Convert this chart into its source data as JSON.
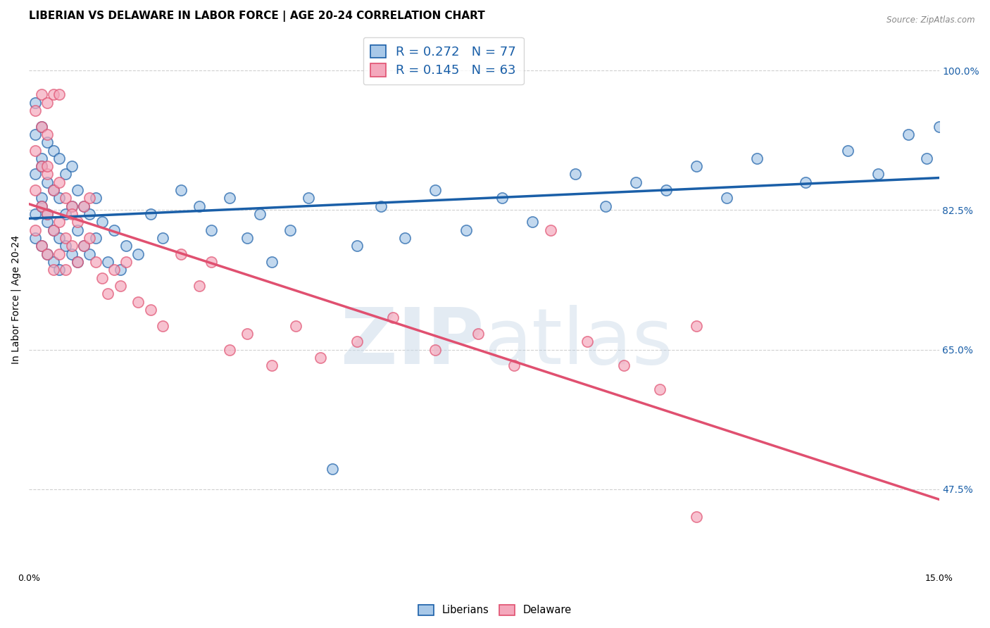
{
  "title": "LIBERIAN VS DELAWARE IN LABOR FORCE | AGE 20-24 CORRELATION CHART",
  "source": "Source: ZipAtlas.com",
  "ylabel": "In Labor Force | Age 20-24",
  "xlim": [
    0.0,
    0.15
  ],
  "ylim": [
    0.375,
    1.05
  ],
  "x_tick_positions": [
    0.0,
    0.025,
    0.05,
    0.075,
    0.1,
    0.125,
    0.15
  ],
  "x_tick_labels": [
    "0.0%",
    "",
    "",
    "",
    "",
    "",
    "15.0%"
  ],
  "y_tick_labels": [
    "47.5%",
    "65.0%",
    "82.5%",
    "100.0%"
  ],
  "y_ticks": [
    0.475,
    0.65,
    0.825,
    1.0
  ],
  "blue_R": 0.272,
  "blue_N": 77,
  "pink_R": 0.145,
  "pink_N": 63,
  "blue_color": "#A8C8E8",
  "pink_color": "#F4A8BC",
  "blue_line_color": "#1A5FA8",
  "pink_line_color": "#E05070",
  "legend_R_color": "#1A5FA8",
  "blue_scatter_x": [
    0.001,
    0.001,
    0.001,
    0.001,
    0.001,
    0.002,
    0.002,
    0.002,
    0.002,
    0.002,
    0.002,
    0.003,
    0.003,
    0.003,
    0.003,
    0.003,
    0.004,
    0.004,
    0.004,
    0.004,
    0.005,
    0.005,
    0.005,
    0.005,
    0.006,
    0.006,
    0.006,
    0.007,
    0.007,
    0.007,
    0.008,
    0.008,
    0.008,
    0.009,
    0.009,
    0.01,
    0.01,
    0.011,
    0.011,
    0.012,
    0.013,
    0.014,
    0.015,
    0.016,
    0.018,
    0.02,
    0.022,
    0.025,
    0.028,
    0.03,
    0.033,
    0.036,
    0.038,
    0.04,
    0.043,
    0.046,
    0.05,
    0.054,
    0.058,
    0.062,
    0.067,
    0.072,
    0.078,
    0.083,
    0.09,
    0.095,
    0.1,
    0.105,
    0.11,
    0.115,
    0.12,
    0.128,
    0.135,
    0.14,
    0.145,
    0.148,
    0.15
  ],
  "blue_scatter_y": [
    0.82,
    0.87,
    0.92,
    0.96,
    0.79,
    0.84,
    0.89,
    0.93,
    0.78,
    0.83,
    0.88,
    0.81,
    0.86,
    0.91,
    0.77,
    0.82,
    0.8,
    0.85,
    0.9,
    0.76,
    0.79,
    0.84,
    0.89,
    0.75,
    0.82,
    0.87,
    0.78,
    0.83,
    0.88,
    0.77,
    0.8,
    0.85,
    0.76,
    0.83,
    0.78,
    0.82,
    0.77,
    0.84,
    0.79,
    0.81,
    0.76,
    0.8,
    0.75,
    0.78,
    0.77,
    0.82,
    0.79,
    0.85,
    0.83,
    0.8,
    0.84,
    0.79,
    0.82,
    0.76,
    0.8,
    0.84,
    0.5,
    0.78,
    0.83,
    0.79,
    0.85,
    0.8,
    0.84,
    0.81,
    0.87,
    0.83,
    0.86,
    0.85,
    0.88,
    0.84,
    0.89,
    0.86,
    0.9,
    0.87,
    0.92,
    0.89,
    0.93
  ],
  "pink_scatter_x": [
    0.001,
    0.001,
    0.001,
    0.001,
    0.002,
    0.002,
    0.002,
    0.002,
    0.003,
    0.003,
    0.003,
    0.003,
    0.004,
    0.004,
    0.004,
    0.005,
    0.005,
    0.005,
    0.006,
    0.006,
    0.007,
    0.007,
    0.008,
    0.008,
    0.009,
    0.009,
    0.01,
    0.01,
    0.011,
    0.012,
    0.013,
    0.014,
    0.015,
    0.016,
    0.018,
    0.02,
    0.022,
    0.025,
    0.028,
    0.03,
    0.033,
    0.036,
    0.04,
    0.044,
    0.048,
    0.054,
    0.06,
    0.067,
    0.074,
    0.08,
    0.086,
    0.092,
    0.098,
    0.104,
    0.11,
    0.002,
    0.003,
    0.004,
    0.005,
    0.003,
    0.006,
    0.007,
    0.11
  ],
  "pink_scatter_y": [
    0.85,
    0.9,
    0.95,
    0.8,
    0.83,
    0.88,
    0.93,
    0.78,
    0.82,
    0.87,
    0.92,
    0.77,
    0.8,
    0.85,
    0.75,
    0.81,
    0.86,
    0.77,
    0.79,
    0.84,
    0.78,
    0.83,
    0.76,
    0.81,
    0.78,
    0.83,
    0.79,
    0.84,
    0.76,
    0.74,
    0.72,
    0.75,
    0.73,
    0.76,
    0.71,
    0.7,
    0.68,
    0.77,
    0.73,
    0.76,
    0.65,
    0.67,
    0.63,
    0.68,
    0.64,
    0.66,
    0.69,
    0.65,
    0.67,
    0.63,
    0.8,
    0.66,
    0.63,
    0.6,
    0.68,
    0.97,
    0.96,
    0.97,
    0.97,
    0.88,
    0.75,
    0.82,
    0.44
  ],
  "watermark_zip": "ZIP",
  "watermark_atlas": "atlas",
  "background_color": "#ffffff",
  "grid_color": "#d0d0d0",
  "title_fontsize": 11,
  "axis_label_fontsize": 10,
  "tick_fontsize": 9,
  "legend_fontsize": 13
}
